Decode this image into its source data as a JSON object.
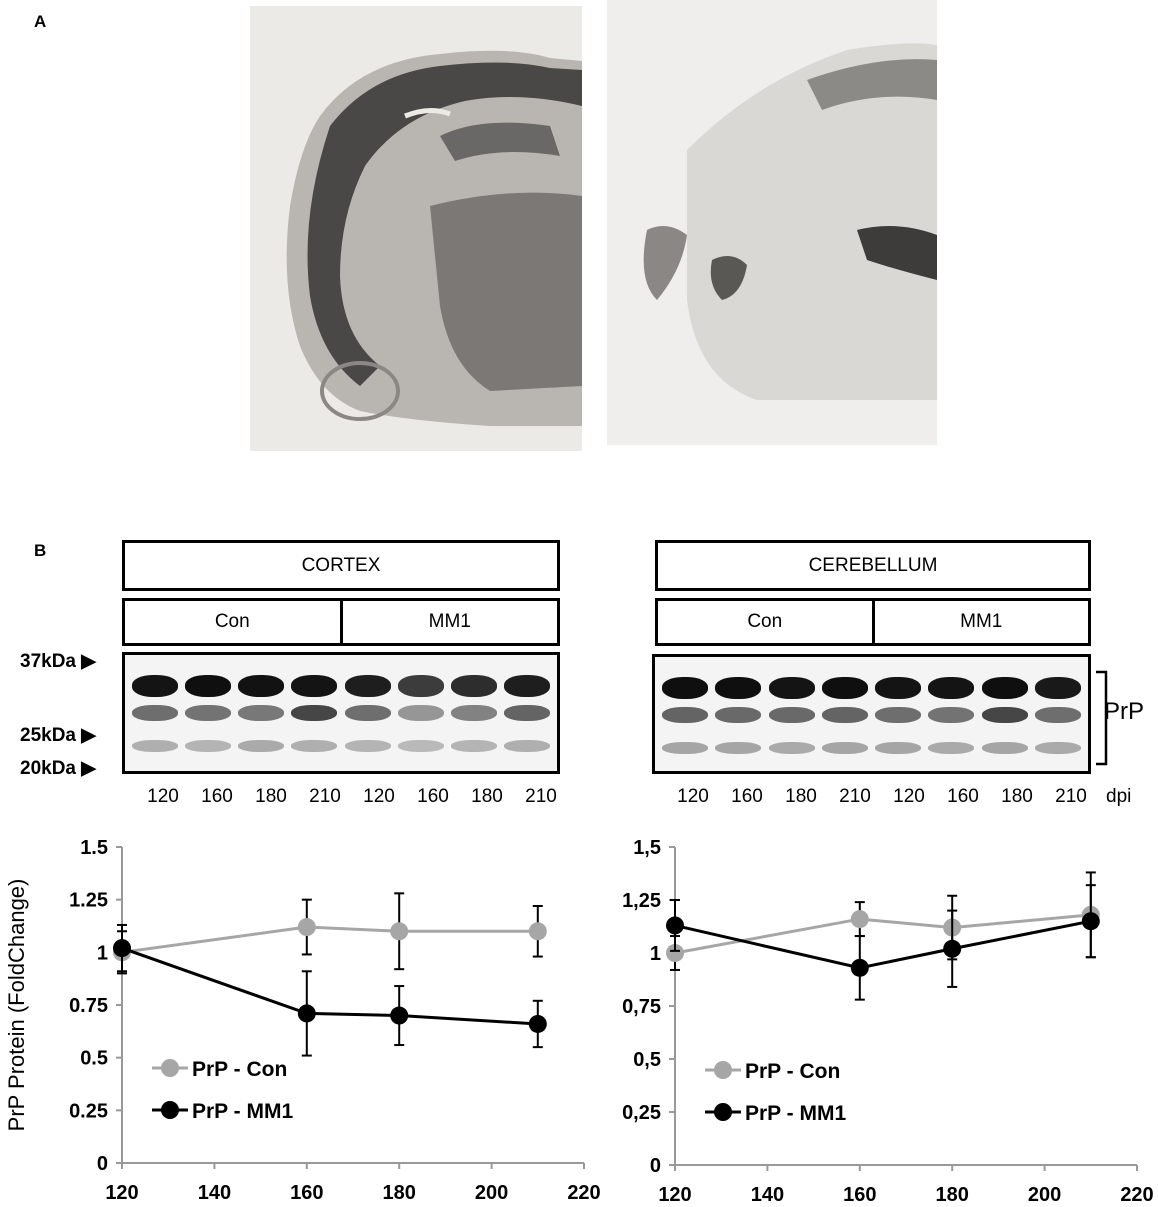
{
  "panel_a": {
    "letter": "A"
  },
  "panel_b": {
    "letter": "B",
    "markers": [
      "37kDa",
      "25kDa",
      "20kDa"
    ],
    "protein_label": "PrP",
    "dpi_unit": "dpi",
    "regions": [
      {
        "name": "CORTEX",
        "groups": [
          "Con",
          "MM1"
        ],
        "lanes": [
          "120",
          "160",
          "180",
          "210",
          "120",
          "160",
          "180",
          "210"
        ]
      },
      {
        "name": "CEREBELLUM",
        "groups": [
          "Con",
          "MM1"
        ],
        "lanes": [
          "120",
          "160",
          "180",
          "210",
          "120",
          "160",
          "180",
          "210"
        ]
      }
    ]
  },
  "colors": {
    "con": "#a6a6a6",
    "mm1": "#000000",
    "axis": "#999999"
  },
  "chart_data": [
    {
      "type": "line",
      "region": "CORTEX",
      "ylabel": "PrP Protein (FoldChange)",
      "xlim": [
        120,
        220
      ],
      "xticks": [
        "120",
        "140",
        "160",
        "180",
        "200",
        "220"
      ],
      "ylim": [
        0,
        1.5
      ],
      "yticks": [
        "0",
        "0.25",
        "0.5",
        "0.75",
        "1",
        "1.25",
        "1.5"
      ],
      "legend_position": "bottom-left",
      "series": [
        {
          "name": "PrP - Con",
          "x": [
            120,
            160,
            180,
            210
          ],
          "y": [
            1.0,
            1.12,
            1.1,
            1.1
          ],
          "err": [
            0.1,
            0.13,
            0.18,
            0.12
          ]
        },
        {
          "name": "PrP - MM1",
          "x": [
            120,
            160,
            180,
            210
          ],
          "y": [
            1.02,
            0.71,
            0.7,
            0.66
          ],
          "err": [
            0.11,
            0.2,
            0.14,
            0.11
          ]
        }
      ]
    },
    {
      "type": "line",
      "region": "CEREBELLUM",
      "ylabel": "",
      "xlim": [
        120,
        220
      ],
      "xticks": [
        "120",
        "140",
        "160",
        "180",
        "200",
        "220"
      ],
      "ylim": [
        0,
        1.5
      ],
      "yticks": [
        "0",
        "0,25",
        "0,5",
        "0,75",
        "1",
        "1,25",
        "1,5"
      ],
      "legend_position": "bottom-left",
      "series": [
        {
          "name": "PrP - Con",
          "x": [
            120,
            160,
            180,
            210
          ],
          "y": [
            1.0,
            1.16,
            1.12,
            1.18
          ],
          "err": [
            0.08,
            0.08,
            0.15,
            0.2
          ]
        },
        {
          "name": "PrP - MM1",
          "x": [
            120,
            160,
            180,
            210
          ],
          "y": [
            1.13,
            0.93,
            1.02,
            1.15
          ],
          "err": [
            0.12,
            0.15,
            0.18,
            0.17
          ]
        }
      ]
    }
  ]
}
